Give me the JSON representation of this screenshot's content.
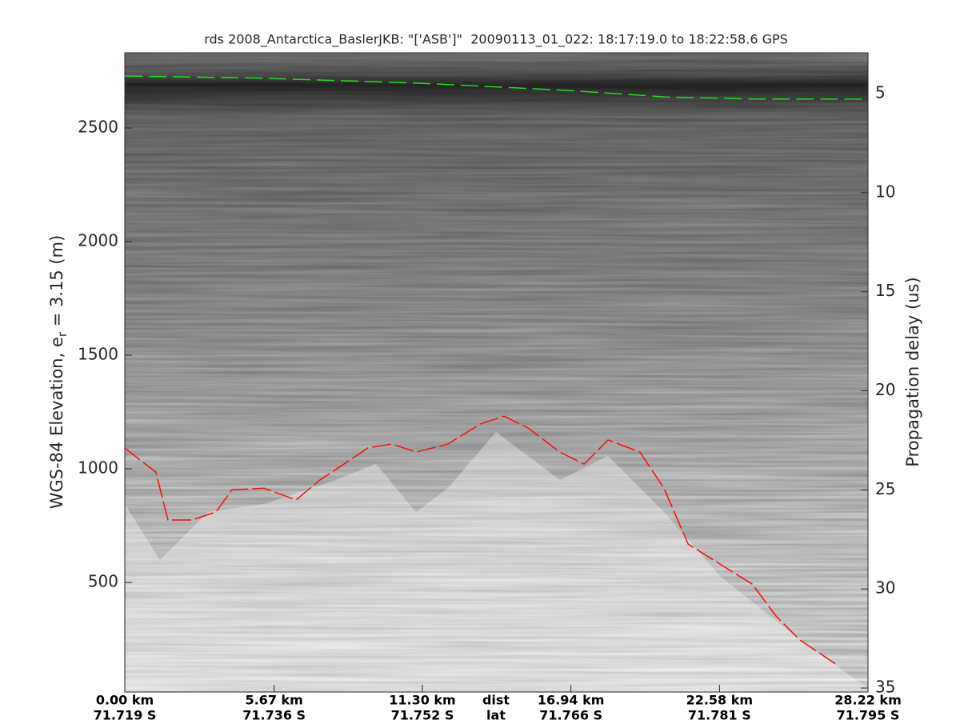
{
  "chart_data": {
    "type": "line",
    "title": "rds 2008_Antarctica_BaslerJKB: \"['ASB']\"  20090113_01_022: 18:17:19.0 to 18:22:58.6 GPS",
    "ylabel": {
      "main": "WGS-84 Elevation, e",
      "sub": "r",
      "rest": " = 3.15 (m)"
    },
    "y2label": "Propagation delay (us)",
    "xlim": [
      0,
      28.22
    ],
    "xticks": [
      {
        "value": 0,
        "label": "0.00 km"
      },
      {
        "value": 5.67,
        "label": "5.67 km"
      },
      {
        "value": 11.3,
        "label": "11.30 km"
      },
      {
        "value": 16.94,
        "label": "16.94 km"
      },
      {
        "value": 22.58,
        "label": "22.58 km"
      },
      {
        "value": 28.22,
        "label": "28.22 km"
      }
    ],
    "lat_ticks": [
      "71.719 S",
      "71.736 S",
      "71.752 S",
      "71.766 S",
      "71.781 S",
      "71.795 S"
    ],
    "x_row_names": [
      "dist",
      "lat"
    ],
    "ylim": [
      18,
      2831
    ],
    "yticks": [
      500,
      1000,
      1500,
      2000,
      2500
    ],
    "y2lim": [
      35.2,
      2.94
    ],
    "y2ticks": [
      5,
      10,
      15,
      20,
      25,
      30,
      35
    ],
    "series": [
      {
        "name": "surface",
        "color": "#22dd22",
        "dash": "22 8",
        "x": [
          0,
          5,
          11.3,
          16.9,
          20.5,
          24,
          28.22
        ],
        "values": [
          2729,
          2720,
          2697,
          2665,
          2637,
          2627,
          2627
        ]
      },
      {
        "name": "bed",
        "color": "#ee1111",
        "dash": "24 5",
        "x": [
          0,
          0.58,
          1.18,
          1.64,
          2.55,
          3.46,
          4.07,
          5.29,
          6.5,
          7.41,
          8.32,
          9.23,
          10.15,
          11.06,
          12.27,
          13.49,
          14.4,
          15.31,
          16.52,
          17.44,
          18.35,
          19.56,
          20.47,
          21.39,
          22.6,
          23.82,
          24.73,
          25.64,
          27
        ],
        "values": [
          1092,
          1039,
          986,
          775,
          775,
          810,
          908,
          915,
          863,
          951,
          1021,
          1092,
          1109,
          1074,
          1109,
          1197,
          1232,
          1180,
          1074,
          1021,
          1127,
          1074,
          915,
          669,
          581,
          493,
          352,
          246,
          141
        ]
      }
    ]
  }
}
